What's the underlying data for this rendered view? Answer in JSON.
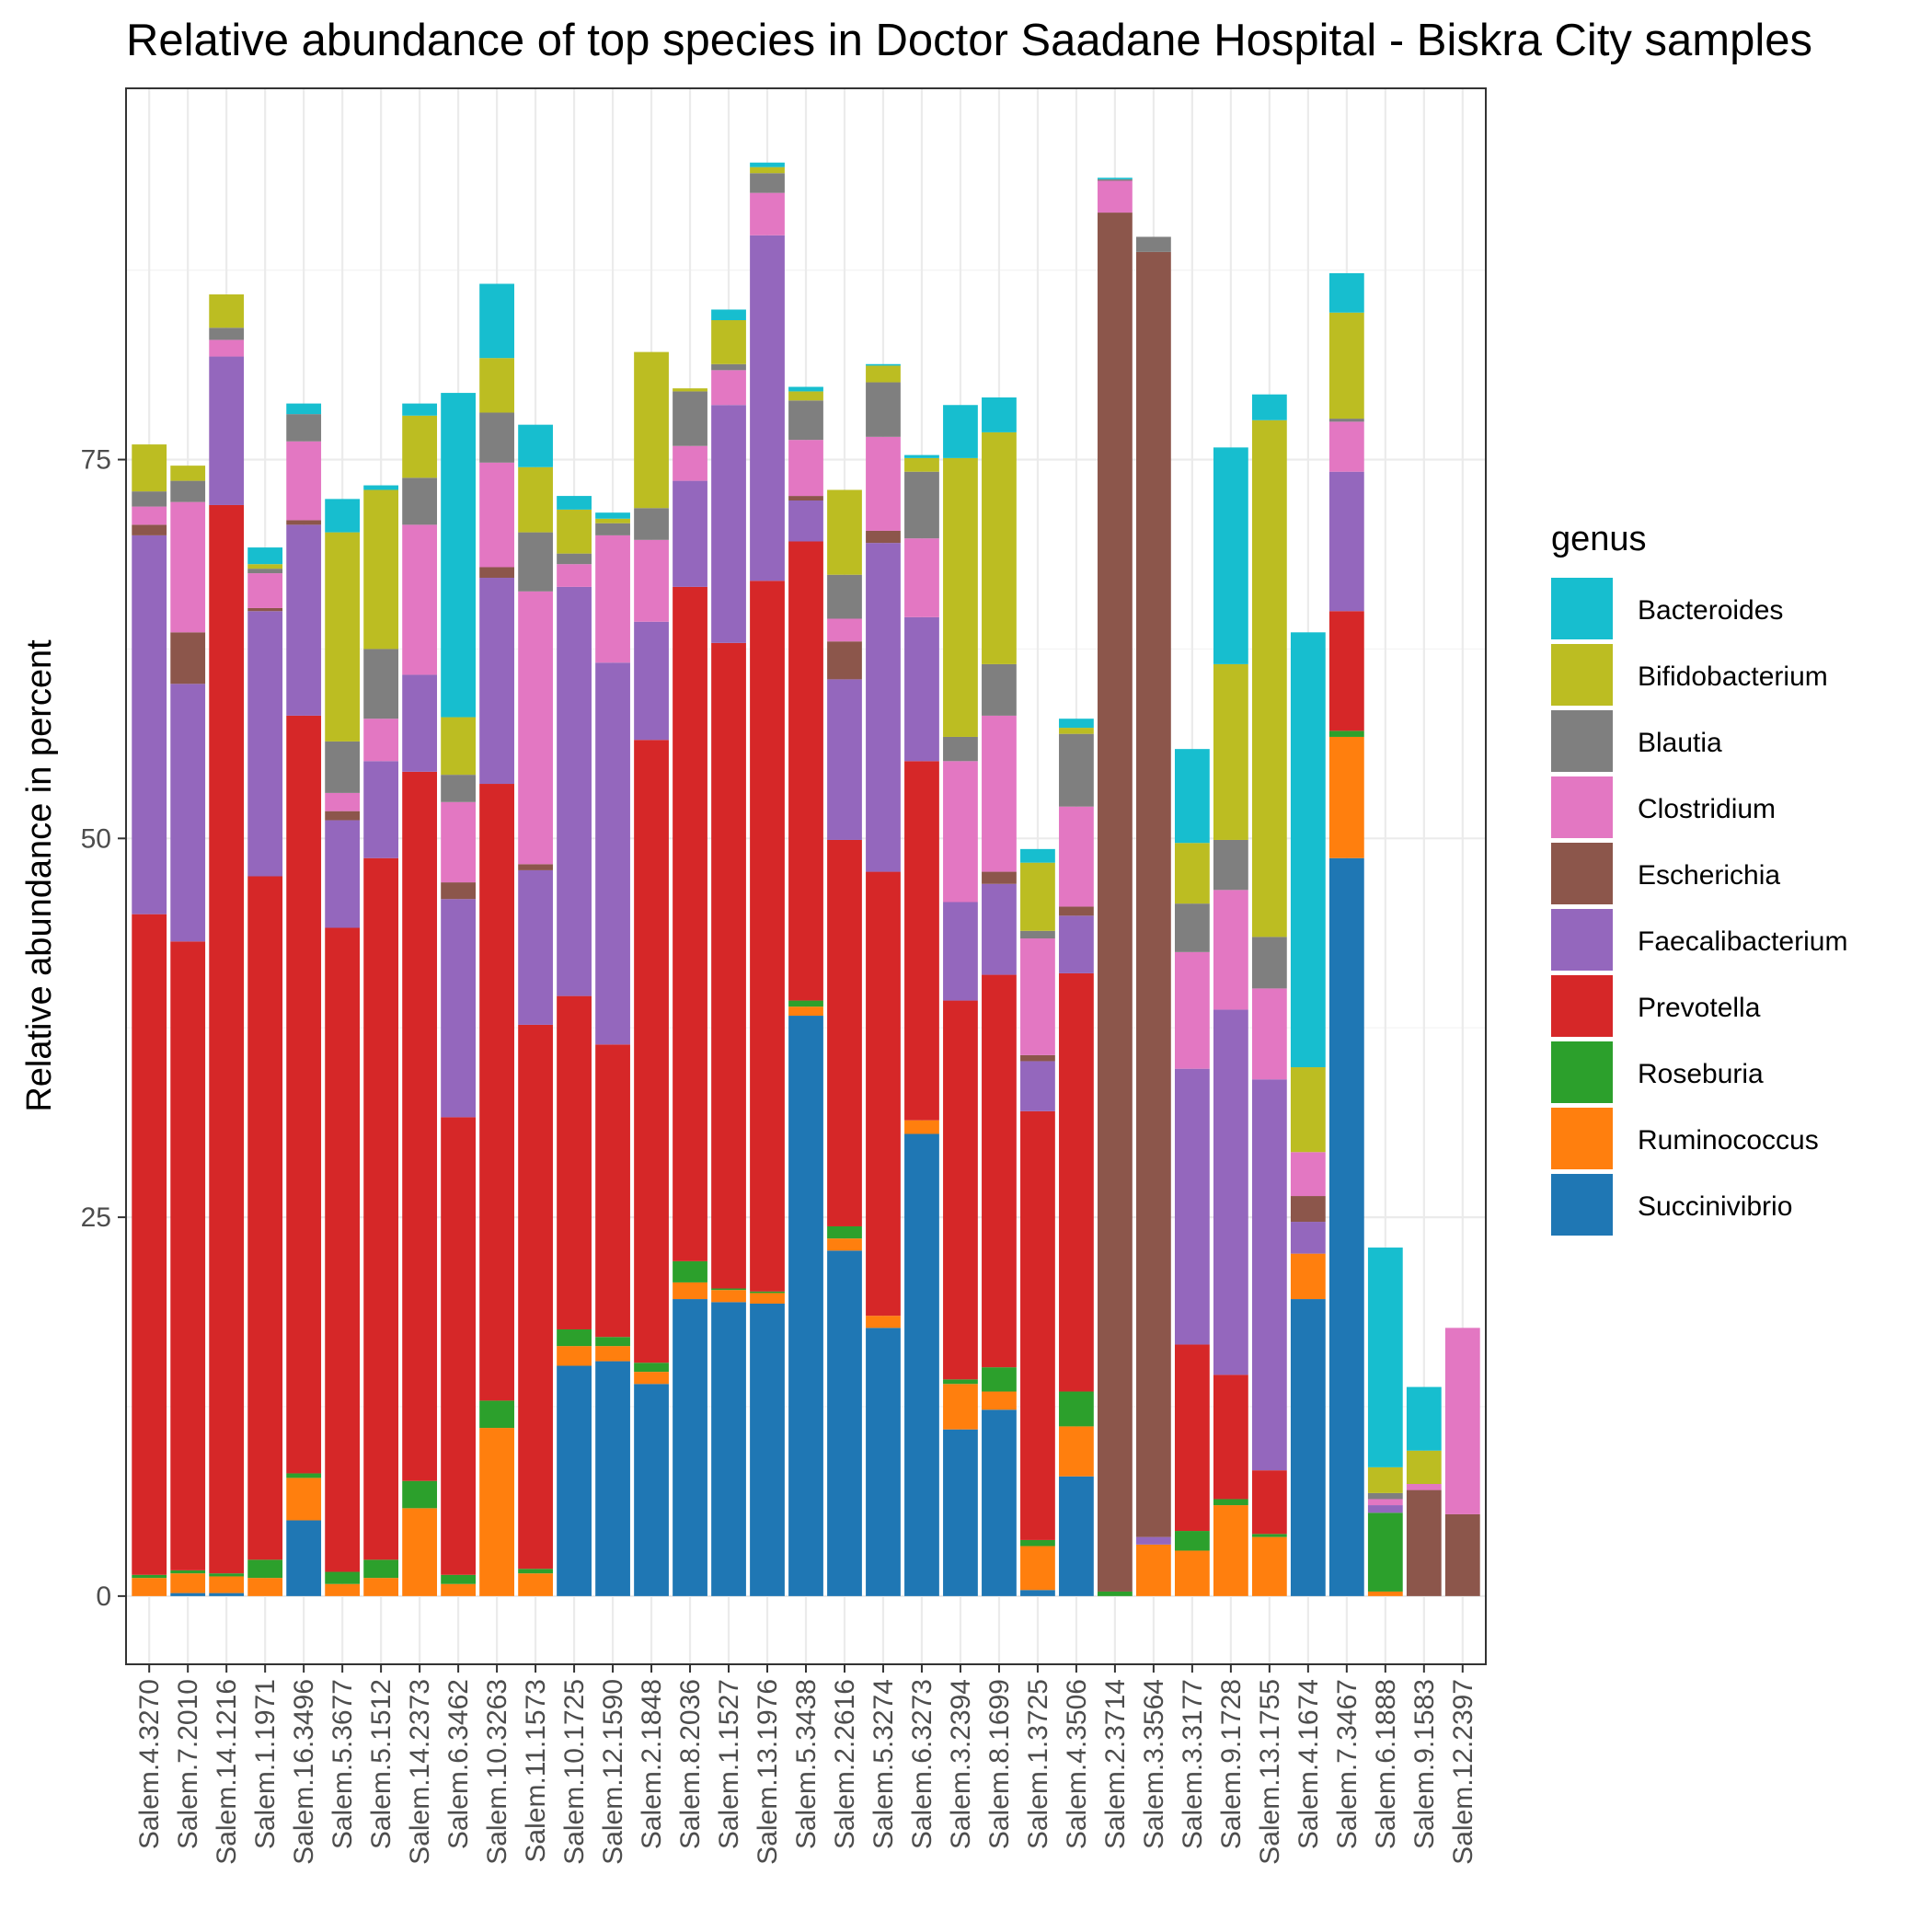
{
  "chart_data": {
    "type": "bar",
    "stacked": true,
    "title": "Relative abundance of top species in Doctor Saadane Hospital - Biskra City  samples",
    "xlabel": "",
    "ylabel": "Relative abundance in percent",
    "ylim": [
      -4.5,
      99.5
    ],
    "yticks": [
      0,
      25,
      50,
      75
    ],
    "grid": true,
    "legend_title": "genus",
    "legend_position": "right",
    "categories": [
      "Salem.4.3270",
      "Salem.7.2010",
      "Salem.14.1216",
      "Salem.1.1971",
      "Salem.16.3496",
      "Salem.5.3677",
      "Salem.5.1512",
      "Salem.14.2373",
      "Salem.6.3462",
      "Salem.10.3263",
      "Salem.11.1573",
      "Salem.10.1725",
      "Salem.12.1590",
      "Salem.2.1848",
      "Salem.8.2036",
      "Salem.1.1527",
      "Salem.13.1976",
      "Salem.5.3438",
      "Salem.2.2616",
      "Salem.5.3274",
      "Salem.6.3273",
      "Salem.3.2394",
      "Salem.8.1699",
      "Salem.1.3725",
      "Salem.4.3506",
      "Salem.2.3714",
      "Salem.3.3564",
      "Salem.3.3177",
      "Salem.9.1728",
      "Salem.13.1755",
      "Salem.4.1674",
      "Salem.7.3467",
      "Salem.6.1888",
      "Salem.9.1583",
      "Salem.12.2397"
    ],
    "series": [
      {
        "name": "Succinivibrio",
        "color": "#1f77b4",
        "values": [
          0,
          0.2,
          0.2,
          0,
          5,
          0,
          0,
          0,
          0,
          0,
          0,
          15.2,
          15.5,
          14,
          19.6,
          19.4,
          19.3,
          38.3,
          22.8,
          17.7,
          30.5,
          11,
          12.3,
          0.4,
          7.9,
          0,
          0,
          0,
          0,
          0,
          19.6,
          48.7,
          0,
          0,
          0
        ]
      },
      {
        "name": "Ruminococcus",
        "color": "#ff7f0e",
        "values": [
          1.2,
          1.3,
          1.1,
          1.2,
          2.8,
          0.8,
          1.2,
          5.8,
          0.8,
          11.1,
          1.5,
          1.3,
          1,
          0.8,
          1.1,
          0.8,
          0.7,
          0.6,
          0.8,
          0.8,
          0.9,
          3,
          1.2,
          2.9,
          3.3,
          0,
          3.4,
          3,
          6,
          3.9,
          3,
          8,
          0.3,
          0,
          0
        ]
      },
      {
        "name": "Roseburia",
        "color": "#2ca02c",
        "values": [
          0.2,
          0.2,
          0.2,
          1.2,
          0.3,
          0.8,
          1.2,
          1.8,
          0.6,
          1.8,
          0.3,
          1.1,
          0.6,
          0.6,
          1.4,
          0.1,
          0.1,
          0.4,
          0.8,
          0,
          0,
          0.3,
          1.6,
          0.4,
          2.3,
          0.3,
          0,
          1.3,
          0.4,
          0.2,
          0,
          0.4,
          5.2,
          0,
          0
        ]
      },
      {
        "name": "Prevotella",
        "color": "#d62728",
        "values": [
          43.6,
          41.5,
          70.5,
          45.1,
          50,
          42.5,
          46.3,
          46.8,
          30.2,
          40.7,
          35.9,
          22,
          19.3,
          41.1,
          44.5,
          42.6,
          46.9,
          30.3,
          25.5,
          29.3,
          23.7,
          25,
          25.9,
          28.3,
          27.6,
          0,
          0,
          12.3,
          8.2,
          4.2,
          0,
          7.9,
          0,
          0,
          0
        ]
      },
      {
        "name": "Faecalibacterium",
        "color": "#9467bd",
        "values": [
          25,
          17,
          9.8,
          17.5,
          12.6,
          7.1,
          6.4,
          6.4,
          14.4,
          13.6,
          10.2,
          27,
          25.2,
          7.8,
          7,
          15.7,
          22.8,
          2.7,
          10.6,
          21.7,
          9.5,
          6.5,
          6,
          3.3,
          3.8,
          0,
          0.5,
          18.2,
          24.1,
          25.8,
          2.1,
          9.2,
          0.5,
          0,
          0
        ]
      },
      {
        "name": "Escherichia",
        "color": "#8c564b",
        "values": [
          0.7,
          3.4,
          0,
          0.2,
          0.3,
          0.6,
          0,
          0,
          1.1,
          0.7,
          0.4,
          0,
          0,
          0,
          0,
          0,
          0,
          0.3,
          2.5,
          0.8,
          0,
          0,
          0.8,
          0.4,
          0.6,
          91,
          84.8,
          0,
          0,
          0,
          1.7,
          0,
          0,
          7,
          5.4
        ]
      },
      {
        "name": "Clostridium",
        "color": "#e377c2",
        "values": [
          1.2,
          8.6,
          1.1,
          2.3,
          5.2,
          1.2,
          2.8,
          9.9,
          5.3,
          6.9,
          18,
          1.5,
          8.4,
          5.4,
          2.3,
          2.3,
          2.8,
          3.7,
          1.5,
          6.2,
          5.2,
          9.3,
          10.3,
          7.7,
          6.6,
          2.1,
          0,
          7.7,
          7.9,
          6,
          2.9,
          3.3,
          0.4,
          0.4,
          12.3
        ]
      },
      {
        "name": "Blautia",
        "color": "#7f7f7f",
        "values": [
          1,
          1.4,
          0.8,
          0.3,
          1.8,
          3.4,
          4.6,
          3.1,
          1.8,
          3.3,
          3.9,
          0.7,
          0.8,
          2.1,
          3.6,
          0.4,
          1.3,
          2.6,
          2.9,
          3.6,
          4.4,
          1.6,
          3.4,
          0.5,
          4.8,
          0.1,
          1,
          3.2,
          3.3,
          3.4,
          0,
          0.2,
          0.4,
          0,
          0
        ]
      },
      {
        "name": "Bifidobacterium",
        "color": "#bcbd22",
        "values": [
          3.1,
          1,
          2.2,
          0.3,
          0,
          13.8,
          10.5,
          4.1,
          3.8,
          3.6,
          4.3,
          2.9,
          0.3,
          10.3,
          0.2,
          2.9,
          0.4,
          0.6,
          5.6,
          1.1,
          0.9,
          18.4,
          15.3,
          4.5,
          0.4,
          0,
          0,
          4,
          11.6,
          34.1,
          5.6,
          7,
          1.7,
          2.2,
          0
        ]
      },
      {
        "name": "Bacteroides",
        "color": "#17becf",
        "values": [
          0,
          0,
          0,
          1.1,
          0.7,
          2.2,
          0.3,
          0.8,
          21.4,
          4.9,
          2.8,
          0.9,
          0.4,
          0,
          0,
          0.7,
          0.3,
          0.3,
          0,
          0.1,
          0.2,
          3.5,
          2.3,
          0.9,
          0.6,
          0.1,
          0,
          6.2,
          14.3,
          1.7,
          28.7,
          2.6,
          14.5,
          4.2,
          0
        ]
      }
    ]
  }
}
